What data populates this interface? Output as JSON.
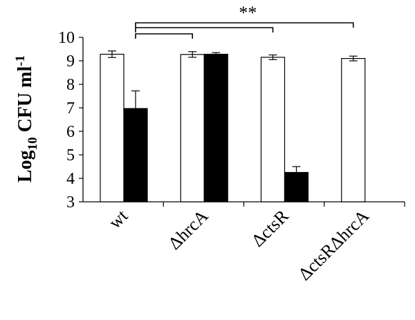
{
  "chart_data": {
    "type": "bar",
    "categories": [
      "wt",
      "ΔhrcA",
      "ΔctsR",
      "ΔctsRΔhrcA"
    ],
    "series": [
      {
        "color": "#ffffff",
        "values": [
          9.28,
          9.27,
          9.15,
          9.1
        ],
        "errors": [
          0.14,
          0.12,
          0.1,
          0.1
        ]
      },
      {
        "color": "#000000",
        "values": [
          6.97,
          9.28,
          4.25,
          null
        ],
        "errors": [
          0.75,
          0.07,
          0.25,
          null
        ]
      }
    ],
    "ylabel": {
      "main": "Log",
      "sub": "10",
      "mid": " CFU ml",
      "sup": "-1"
    },
    "ylim": [
      3,
      10
    ],
    "yticks": [
      3,
      4,
      5,
      6,
      7,
      8,
      9,
      10
    ],
    "significance": {
      "label": "**",
      "comparisons": [
        [
          "wt",
          "ΔhrcA"
        ],
        [
          "wt",
          "ΔctsR"
        ],
        [
          "wt",
          "ΔctsRΔhrcA"
        ]
      ]
    },
    "grid": false,
    "legend": "none"
  }
}
